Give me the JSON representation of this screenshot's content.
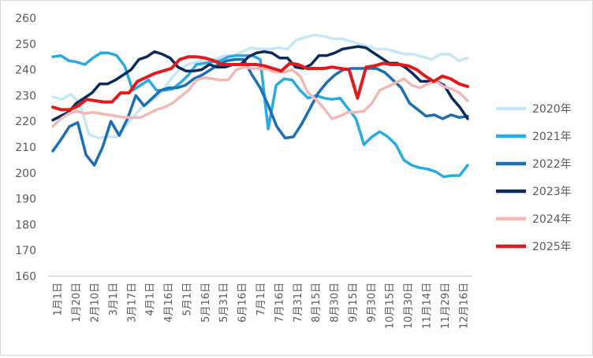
{
  "chart_data": {
    "type": "line",
    "title": "",
    "xlabel": "",
    "ylabel": "",
    "ylim": [
      160,
      260
    ],
    "y_ticks": [
      160,
      170,
      180,
      190,
      200,
      210,
      220,
      230,
      240,
      250,
      260
    ],
    "grid": false,
    "legend": "right",
    "x_tick_labels": [
      "1月1日",
      "1月20日",
      "2月10日",
      "3月1日",
      "3月17日",
      "4月1日",
      "4月16日",
      "5月1日",
      "5月16日",
      "5月31日",
      "6月16日",
      "7月1日",
      "7月16日",
      "7月31日",
      "8月15日",
      "8月30日",
      "9月15日",
      "9月30日",
      "10月15日",
      "10月30日",
      "11月14日",
      "11月29日",
      "12月16日"
    ],
    "series": [
      {
        "name": "2020年",
        "color": "#c6e8f5",
        "values": [
          229.5,
          228.5,
          230.5,
          227,
          215,
          213.5,
          214,
          214,
          218,
          222,
          226,
          228,
          231,
          236,
          240,
          242,
          243,
          244,
          244,
          245.5,
          245.5,
          247,
          248.5,
          248,
          248,
          248.5,
          248,
          251.5,
          252.5,
          253.5,
          253,
          252,
          252,
          251,
          250,
          249,
          248,
          248,
          247,
          246,
          246,
          245,
          244,
          246,
          246,
          243.5,
          244.5
        ]
      },
      {
        "name": "2021年",
        "color": "#29abe2",
        "values": [
          245,
          245.5,
          243.5,
          243,
          242,
          244.5,
          246.5,
          246.5,
          245.5,
          241.5,
          232,
          234,
          236,
          232,
          232,
          232.5,
          235,
          238,
          242,
          242.5,
          243,
          243.5,
          245,
          245.5,
          245.5,
          245.5,
          244,
          217,
          234,
          236.5,
          236,
          232,
          229,
          230,
          229,
          228.5,
          229,
          225,
          221,
          211,
          214,
          216,
          214,
          211,
          205,
          203,
          202,
          201.5,
          200.5,
          198.5,
          199,
          199,
          203
        ]
      },
      {
        "name": "2022年",
        "color": "#1a6fb5",
        "values": [
          208.5,
          213,
          218,
          219.5,
          207,
          203,
          210,
          220,
          214.5,
          221,
          230,
          226,
          229,
          232,
          233,
          233,
          234,
          236.5,
          238,
          240,
          242,
          243.5,
          244,
          244,
          238,
          233,
          226,
          218,
          213.5,
          214,
          219,
          225,
          231,
          235,
          238,
          240,
          240.5,
          240.5,
          240.5,
          240.5,
          239,
          236,
          233,
          227,
          224.5,
          222,
          222.5,
          221,
          222.5,
          221.5,
          222
        ]
      },
      {
        "name": "2023年",
        "color": "#0b2a5e",
        "values": [
          220.5,
          222,
          223.5,
          227,
          229,
          231,
          234.5,
          234.5,
          236,
          238,
          240,
          244,
          245,
          247,
          246,
          244.5,
          241,
          239.5,
          239.5,
          240,
          242,
          241,
          241,
          242,
          242,
          245,
          246.5,
          247,
          246.5,
          244.5,
          244.5,
          241,
          240.5,
          242,
          245.5,
          245.5,
          246.5,
          248,
          248.5,
          249,
          248.5,
          246.5,
          244.5,
          242.5,
          242.5,
          241,
          238.5,
          235.5,
          235.5,
          235.5,
          234,
          229,
          225.5,
          221
        ]
      },
      {
        "name": "2024年",
        "color": "#f2b8b5",
        "values": [
          218,
          221,
          223,
          224,
          223,
          223.5,
          223,
          222.5,
          222,
          221.5,
          221.5,
          221.5,
          223,
          224.5,
          225.5,
          227,
          229.5,
          232,
          236,
          237,
          236.5,
          236,
          236,
          240,
          241,
          240.5,
          240.5,
          240,
          239,
          239,
          240,
          237.5,
          231,
          228.5,
          225,
          221,
          222,
          223.5,
          223.5,
          224,
          227,
          232,
          233.5,
          235,
          236.5,
          234,
          233,
          234.5,
          235.5,
          233.5,
          232.5,
          231,
          228
        ]
      },
      {
        "name": "2025年",
        "color": "#e31a1c",
        "values": [
          225.5,
          224.5,
          224.5,
          226,
          228.5,
          228,
          227.5,
          227.5,
          231,
          231,
          235.5,
          237,
          238.5,
          239.5,
          240.5,
          244,
          245,
          245,
          244.5,
          243.5,
          242,
          242,
          242,
          242,
          242,
          241.5,
          240.5,
          239.5,
          242.5,
          242,
          240.5,
          240.5,
          240.5,
          241,
          240.5,
          240,
          229,
          241,
          241.5,
          242.5,
          242,
          242,
          241.5,
          240,
          237.5,
          235.5,
          237.5,
          236.5,
          234.5,
          233.5
        ]
      }
    ]
  }
}
